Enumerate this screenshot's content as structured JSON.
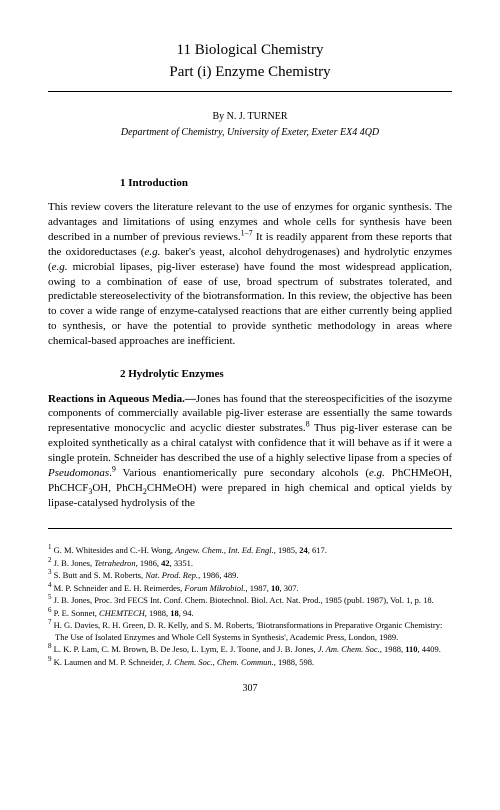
{
  "chapter_title": "11   Biological Chemistry",
  "part_title": "Part (i)   Enzyme Chemistry",
  "byline": "By N. J. TURNER",
  "affiliation": "Department of Chemistry, University of Exeter, Exeter EX4 4QD",
  "section1_heading": "1  Introduction",
  "section1_body": "This review covers the literature relevant to the use of enzymes for organic synthesis. The advantages and limitations of using enzymes and whole cells for synthesis have been described in a number of previous reviews.¹⁻⁷ It is readily apparent from these reports that the oxidoreductases (e.g. baker's yeast, alcohol dehydrogenases) and hydrolytic enzymes (e.g. microbial lipases, pig-liver esterase) have found the most widespread application, owing to a combination of ease of use, broad spectrum of substrates tolerated, and predictable stereoselectivity of the biotransformation. In this review, the objective has been to cover a wide range of enzyme-catalysed reactions that are either currently being applied to synthesis, or have the potential to provide synthetic methodology in areas where chemical-based approaches are inefficient.",
  "section2_heading": "2  Hydrolytic Enzymes",
  "section2_subsection": "Reactions in Aqueous Media.—",
  "section2_body": "Jones has found that the stereospecificities of the isozyme components of commercially available pig-liver esterase are essentially the same towards representative monocyclic and acyclic diester substrates.⁸ Thus pig-liver esterase can be exploited synthetically as a chiral catalyst with confidence that it will behave as if it were a single protein. Schneider has described the use of a highly selective lipase from a species of Pseudomonas.⁹ Various enantiomerically pure secondary alcohols (e.g. PhCHMeOH, PhCHCF₃OH, PhCH₂CHMeOH) were prepared in high chemical and optical yields by lipase-catalysed hydrolysis of the",
  "footnotes": [
    {
      "num": "1",
      "text": "G. M. Whitesides and C.-H. Wong, Angew. Chem., Int. Ed. Engl., 1985, 24, 617."
    },
    {
      "num": "2",
      "text": "J. B. Jones, Tetrahedron, 1986, 42, 3351."
    },
    {
      "num": "3",
      "text": "S. Butt and S. M. Roberts, Nat. Prod. Rep., 1986, 489."
    },
    {
      "num": "4",
      "text": "M. P. Schneider and E. H. Reimerdes, Forum Mikrobiol., 1987, 10, 307."
    },
    {
      "num": "5",
      "text": "J. B. Jones, Proc. 3rd FECS Int. Conf. Chem. Biotechnol. Biol. Act. Nat. Prod., 1985 (publ. 1987), Vol. 1, p. 18."
    },
    {
      "num": "6",
      "text": "P. E. Sonnet, CHEMTECH, 1988, 18, 94."
    },
    {
      "num": "7",
      "text": "H. G. Davies, R. H. Green, D. R. Kelly, and S. M. Roberts, 'Biotransformations in Preparative Organic Chemistry: The Use of Isolated Enzymes and Whole Cell Systems in Synthesis', Academic Press, London, 1989."
    },
    {
      "num": "8",
      "text": "L. K. P. Lam, C. M. Brown, B. De Jeso, L. Lym, E. J. Toone, and J. B. Jones, J. Am. Chem. Soc., 1988, 110, 4409."
    },
    {
      "num": "9",
      "text": "K. Laumen and M. P. Schneider, J. Chem. Soc., Chem. Commun., 1988, 598."
    }
  ],
  "page_number": "307",
  "colors": {
    "background": "#ffffff",
    "text": "#000000",
    "rule": "#000000"
  }
}
